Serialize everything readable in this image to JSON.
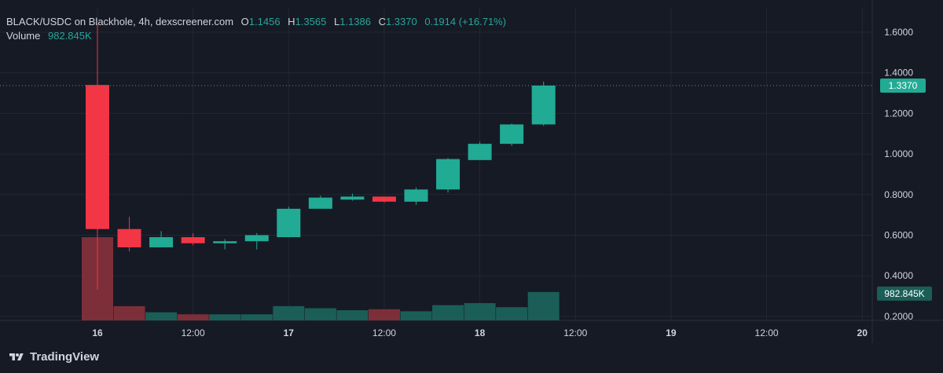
{
  "legend": {
    "title": "BLACK/USDC on Blackhole, 4h, dexscreener.com",
    "o_key": "O",
    "o_val": "1.1456",
    "h_key": "H",
    "h_val": "1.3565",
    "l_key": "L",
    "l_val": "1.1386",
    "c_key": "C",
    "c_val": "1.3370",
    "change": "0.1914 (+16.71%)",
    "volume_label": "Volume",
    "volume_val": "982.845K"
  },
  "brand": {
    "name": "TradingView",
    "icon": "tradingview-logo-icon"
  },
  "colors": {
    "background": "#161a25",
    "grid": "#232734",
    "up": "#22ab94",
    "down": "#f23645",
    "up_volume": "#1b5e57",
    "down_volume": "#7c2f38",
    "axis_text": "#d1d4dc"
  },
  "chart_data": {
    "type": "candlestick",
    "y_axis": {
      "min": 0.18,
      "max": 1.72,
      "position": "right",
      "ticks": [
        "0.2000",
        "0.4000",
        "0.6000",
        "0.8000",
        "1.0000",
        "1.2000",
        "1.4000",
        "1.6000"
      ],
      "tick_values": [
        0.2,
        0.4,
        0.6,
        0.8,
        1.0,
        1.2,
        1.4,
        1.6
      ]
    },
    "x_axis": {
      "labels": [
        "16",
        "12:00",
        "17",
        "12:00",
        "18",
        "12:00",
        "19",
        "12:00",
        "20"
      ],
      "label_bar_index": [
        0,
        3,
        6,
        9,
        12,
        15,
        18,
        21,
        24
      ],
      "bar_count_visible": 25
    },
    "last_price": {
      "value": 1.337,
      "label": "1.3370"
    },
    "last_volume": {
      "label": "982.845K"
    },
    "candles": [
      {
        "o": 1.34,
        "h": 1.64,
        "l": 0.33,
        "c": 0.63,
        "v": 0.59
      },
      {
        "o": 0.63,
        "h": 0.69,
        "l": 0.52,
        "c": 0.54,
        "v": 0.25
      },
      {
        "o": 0.54,
        "h": 0.62,
        "l": 0.54,
        "c": 0.59,
        "v": 0.22
      },
      {
        "o": 0.59,
        "h": 0.61,
        "l": 0.55,
        "c": 0.56,
        "v": 0.21
      },
      {
        "o": 0.56,
        "h": 0.58,
        "l": 0.53,
        "c": 0.57,
        "v": 0.21
      },
      {
        "o": 0.57,
        "h": 0.61,
        "l": 0.53,
        "c": 0.6,
        "v": 0.21
      },
      {
        "o": 0.59,
        "h": 0.74,
        "l": 0.59,
        "c": 0.73,
        "v": 0.25
      },
      {
        "o": 0.73,
        "h": 0.795,
        "l": 0.73,
        "c": 0.785,
        "v": 0.24
      },
      {
        "o": 0.775,
        "h": 0.805,
        "l": 0.77,
        "c": 0.79,
        "v": 0.23
      },
      {
        "o": 0.79,
        "h": 0.79,
        "l": 0.76,
        "c": 0.765,
        "v": 0.235
      },
      {
        "o": 0.765,
        "h": 0.835,
        "l": 0.75,
        "c": 0.825,
        "v": 0.225
      },
      {
        "o": 0.825,
        "h": 0.98,
        "l": 0.81,
        "c": 0.975,
        "v": 0.255
      },
      {
        "o": 0.97,
        "h": 1.06,
        "l": 0.97,
        "c": 1.05,
        "v": 0.265
      },
      {
        "o": 1.05,
        "h": 1.15,
        "l": 1.04,
        "c": 1.1456,
        "v": 0.245
      },
      {
        "o": 1.1456,
        "h": 1.3565,
        "l": 1.1386,
        "c": 1.337,
        "v": 0.32
      }
    ],
    "volume_scale_note": "v values are in price-axis units for overlay rendering"
  }
}
